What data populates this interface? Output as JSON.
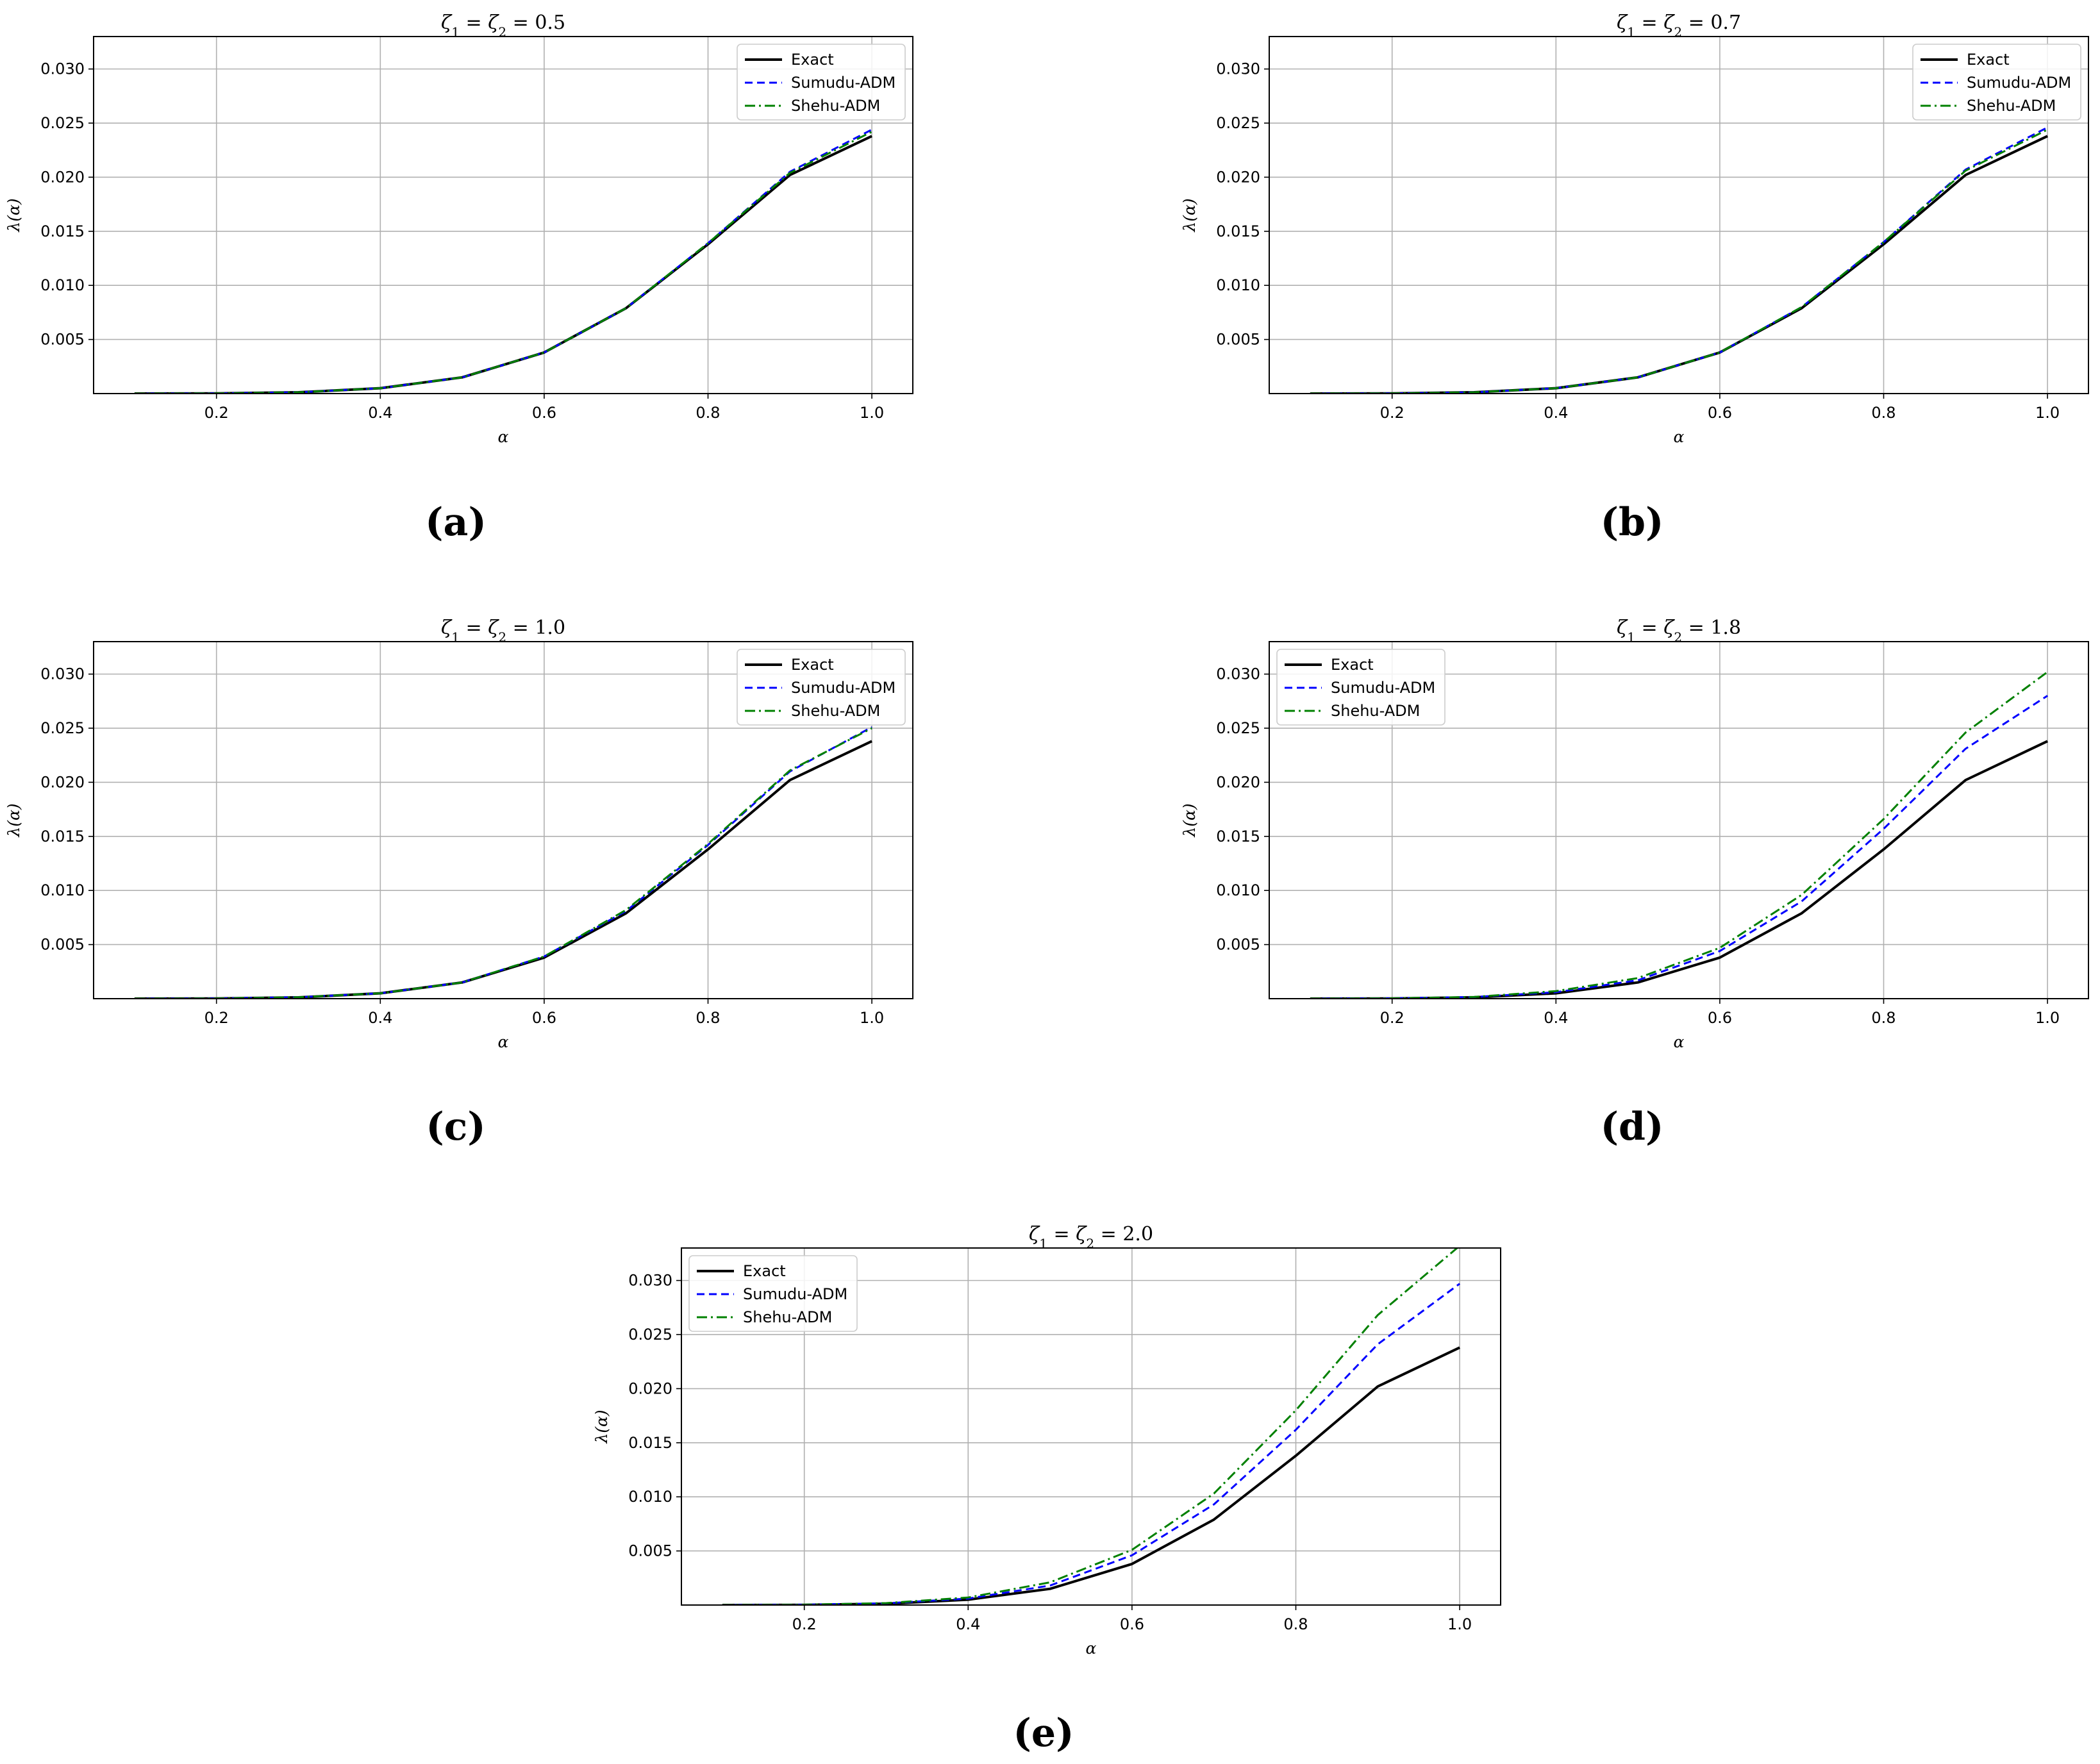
{
  "colors": {
    "exact": "#000000",
    "sumudu": "#0000ff",
    "shehu": "#008000",
    "grid": "#b0b0b0"
  },
  "chart_data": [
    {
      "type": "line",
      "panel_label": "(a)",
      "title": "ζ1 = ζ2 = 0.5",
      "xlabel": "α",
      "ylabel": "λ(α)",
      "xlim": [
        0.05,
        1.05
      ],
      "ylim": [
        0,
        0.033
      ],
      "xticks": [
        0.2,
        0.4,
        0.6,
        0.8,
        1.0
      ],
      "xtick_labels": [
        "0.2",
        "0.4",
        "0.6",
        "0.8",
        "1.0"
      ],
      "yticks": [
        0.005,
        0.01,
        0.015,
        0.02,
        0.025,
        0.03
      ],
      "ytick_labels": [
        "0.005",
        "0.010",
        "0.015",
        "0.020",
        "0.025",
        "0.030"
      ],
      "grid": true,
      "legend_position": "top-right",
      "x": [
        0.1,
        0.2,
        0.3,
        0.4,
        0.5,
        0.6,
        0.7,
        0.8,
        0.9,
        1.0
      ],
      "series": [
        {
          "name": "Exact",
          "style": "solid",
          "values": [
            0.0,
            2e-05,
            0.00012,
            0.0005,
            0.0015,
            0.0038,
            0.0079,
            0.0138,
            0.0202,
            0.0238
          ]
        },
        {
          "name": "Sumudu-ADM",
          "style": "dashed",
          "values": [
            0.0,
            2e-05,
            0.00012,
            0.0005,
            0.0015,
            0.0038,
            0.0079,
            0.0139,
            0.0205,
            0.0244
          ]
        },
        {
          "name": "Shehu-ADM",
          "style": "dashdot",
          "values": [
            0.0,
            2e-05,
            0.00012,
            0.0005,
            0.0015,
            0.0038,
            0.0079,
            0.0139,
            0.0204,
            0.0242
          ]
        }
      ]
    },
    {
      "type": "line",
      "panel_label": "(b)",
      "title": "ζ1 = ζ2 = 0.7",
      "xlabel": "α",
      "ylabel": "λ(α)",
      "xlim": [
        0.05,
        1.05
      ],
      "ylim": [
        0,
        0.033
      ],
      "xticks": [
        0.2,
        0.4,
        0.6,
        0.8,
        1.0
      ],
      "xtick_labels": [
        "0.2",
        "0.4",
        "0.6",
        "0.8",
        "1.0"
      ],
      "yticks": [
        0.005,
        0.01,
        0.015,
        0.02,
        0.025,
        0.03
      ],
      "ytick_labels": [
        "0.005",
        "0.010",
        "0.015",
        "0.020",
        "0.025",
        "0.030"
      ],
      "grid": true,
      "legend_position": "top-right",
      "x": [
        0.1,
        0.2,
        0.3,
        0.4,
        0.5,
        0.6,
        0.7,
        0.8,
        0.9,
        1.0
      ],
      "series": [
        {
          "name": "Exact",
          "style": "solid",
          "values": [
            0.0,
            2e-05,
            0.00012,
            0.0005,
            0.0015,
            0.0038,
            0.0079,
            0.0138,
            0.0202,
            0.0238
          ]
        },
        {
          "name": "Sumudu-ADM",
          "style": "dashed",
          "values": [
            0.0,
            2e-05,
            0.00012,
            0.0005,
            0.0015,
            0.0038,
            0.008,
            0.014,
            0.0207,
            0.0246
          ]
        },
        {
          "name": "Shehu-ADM",
          "style": "dashdot",
          "values": [
            0.0,
            2e-05,
            0.00012,
            0.0005,
            0.0015,
            0.0038,
            0.008,
            0.014,
            0.0206,
            0.0244
          ]
        }
      ]
    },
    {
      "type": "line",
      "panel_label": "(c)",
      "title": "ζ1 = ζ2 = 1.0",
      "xlabel": "α",
      "ylabel": "λ(α)",
      "xlim": [
        0.05,
        1.05
      ],
      "ylim": [
        0,
        0.033
      ],
      "xticks": [
        0.2,
        0.4,
        0.6,
        0.8,
        1.0
      ],
      "xtick_labels": [
        "0.2",
        "0.4",
        "0.6",
        "0.8",
        "1.0"
      ],
      "yticks": [
        0.005,
        0.01,
        0.015,
        0.02,
        0.025,
        0.03
      ],
      "ytick_labels": [
        "0.005",
        "0.010",
        "0.015",
        "0.020",
        "0.025",
        "0.030"
      ],
      "grid": true,
      "legend_position": "top-right",
      "x": [
        0.1,
        0.2,
        0.3,
        0.4,
        0.5,
        0.6,
        0.7,
        0.8,
        0.9,
        1.0
      ],
      "series": [
        {
          "name": "Exact",
          "style": "solid",
          "values": [
            0.0,
            2e-05,
            0.00012,
            0.0005,
            0.0015,
            0.0038,
            0.0079,
            0.0138,
            0.0202,
            0.0238
          ]
        },
        {
          "name": "Sumudu-ADM",
          "style": "dashed",
          "values": [
            0.0,
            2e-05,
            0.00013,
            0.0005,
            0.0015,
            0.0039,
            0.0081,
            0.0142,
            0.021,
            0.0251
          ]
        },
        {
          "name": "Shehu-ADM",
          "style": "dashdot",
          "values": [
            0.0,
            2e-05,
            0.00013,
            0.0005,
            0.0015,
            0.0039,
            0.0082,
            0.0143,
            0.0211,
            0.025
          ]
        }
      ]
    },
    {
      "type": "line",
      "panel_label": "(d)",
      "title": "ζ1 = ζ2 = 1.8",
      "xlabel": "α",
      "ylabel": "λ(α)",
      "xlim": [
        0.05,
        1.05
      ],
      "ylim": [
        0,
        0.033
      ],
      "xticks": [
        0.2,
        0.4,
        0.6,
        0.8,
        1.0
      ],
      "xtick_labels": [
        "0.2",
        "0.4",
        "0.6",
        "0.8",
        "1.0"
      ],
      "yticks": [
        0.005,
        0.01,
        0.015,
        0.02,
        0.025,
        0.03
      ],
      "ytick_labels": [
        "0.005",
        "0.010",
        "0.015",
        "0.020",
        "0.025",
        "0.030"
      ],
      "grid": true,
      "legend_position": "top-left",
      "x": [
        0.1,
        0.2,
        0.3,
        0.4,
        0.5,
        0.6,
        0.7,
        0.8,
        0.9,
        1.0
      ],
      "series": [
        {
          "name": "Exact",
          "style": "solid",
          "values": [
            0.0,
            2e-05,
            0.00012,
            0.0005,
            0.0015,
            0.0038,
            0.0079,
            0.0138,
            0.0202,
            0.0238
          ]
        },
        {
          "name": "Sumudu-ADM",
          "style": "dashed",
          "values": [
            0.0,
            3e-05,
            0.00015,
            0.0006,
            0.0017,
            0.0044,
            0.009,
            0.0157,
            0.0231,
            0.028
          ]
        },
        {
          "name": "Shehu-ADM",
          "style": "dashdot",
          "values": [
            0.0,
            3e-05,
            0.00016,
            0.0007,
            0.0019,
            0.0047,
            0.0096,
            0.0166,
            0.0246,
            0.0302
          ]
        }
      ]
    },
    {
      "type": "line",
      "panel_label": "(e)",
      "title": "ζ1 = ζ2 = 2.0",
      "xlabel": "α",
      "ylabel": "λ(α)",
      "xlim": [
        0.05,
        1.05
      ],
      "ylim": [
        0,
        0.033
      ],
      "xticks": [
        0.2,
        0.4,
        0.6,
        0.8,
        1.0
      ],
      "xtick_labels": [
        "0.2",
        "0.4",
        "0.6",
        "0.8",
        "1.0"
      ],
      "yticks": [
        0.005,
        0.01,
        0.015,
        0.02,
        0.025,
        0.03
      ],
      "ytick_labels": [
        "0.005",
        "0.010",
        "0.015",
        "0.020",
        "0.025",
        "0.030"
      ],
      "grid": true,
      "legend_position": "top-left",
      "x": [
        0.1,
        0.2,
        0.3,
        0.4,
        0.5,
        0.6,
        0.7,
        0.8,
        0.9,
        1.0
      ],
      "series": [
        {
          "name": "Exact",
          "style": "solid",
          "values": [
            0.0,
            2e-05,
            0.00012,
            0.0005,
            0.0015,
            0.0038,
            0.0079,
            0.0138,
            0.0202,
            0.0238
          ]
        },
        {
          "name": "Sumudu-ADM",
          "style": "dashed",
          "values": [
            0.0,
            3e-05,
            0.00016,
            0.0006,
            0.0018,
            0.0046,
            0.0093,
            0.0162,
            0.0241,
            0.0297
          ]
        },
        {
          "name": "Shehu-ADM",
          "style": "dashdot",
          "values": [
            0.0,
            3e-05,
            0.00018,
            0.0007,
            0.0021,
            0.0051,
            0.0103,
            0.018,
            0.0268,
            0.0332
          ]
        }
      ]
    }
  ]
}
